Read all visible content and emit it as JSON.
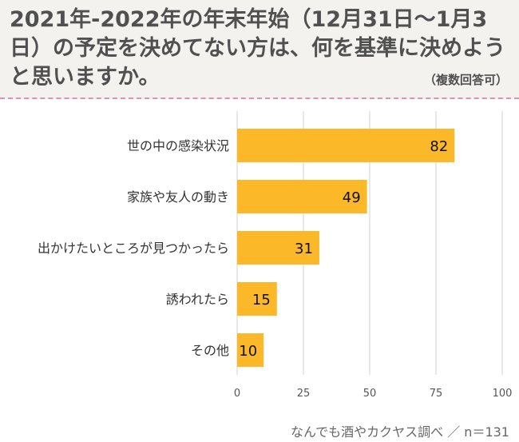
{
  "header": {
    "title": "2021年-2022年の年末年始（12月31日〜1月3日）の予定を決めてない方は、何を基準に決めようと思いますか。",
    "note": "（複数回答可）"
  },
  "chart_data": {
    "type": "bar",
    "orientation": "horizontal",
    "categories": [
      "世の中の感染状況",
      "家族や友人の動き",
      "出かけたいところが見つかったら",
      "誘われたら",
      "その他"
    ],
    "values": [
      82,
      49,
      31,
      15,
      10
    ],
    "xlim": [
      0,
      100
    ],
    "xticks": [
      0,
      25,
      50,
      75,
      100
    ],
    "grid": true,
    "bar_color": "#fbb829",
    "grid_color": "#d0d0d0"
  },
  "footer": {
    "source": "なんでも酒やカクヤス調べ ／ n＝131"
  }
}
